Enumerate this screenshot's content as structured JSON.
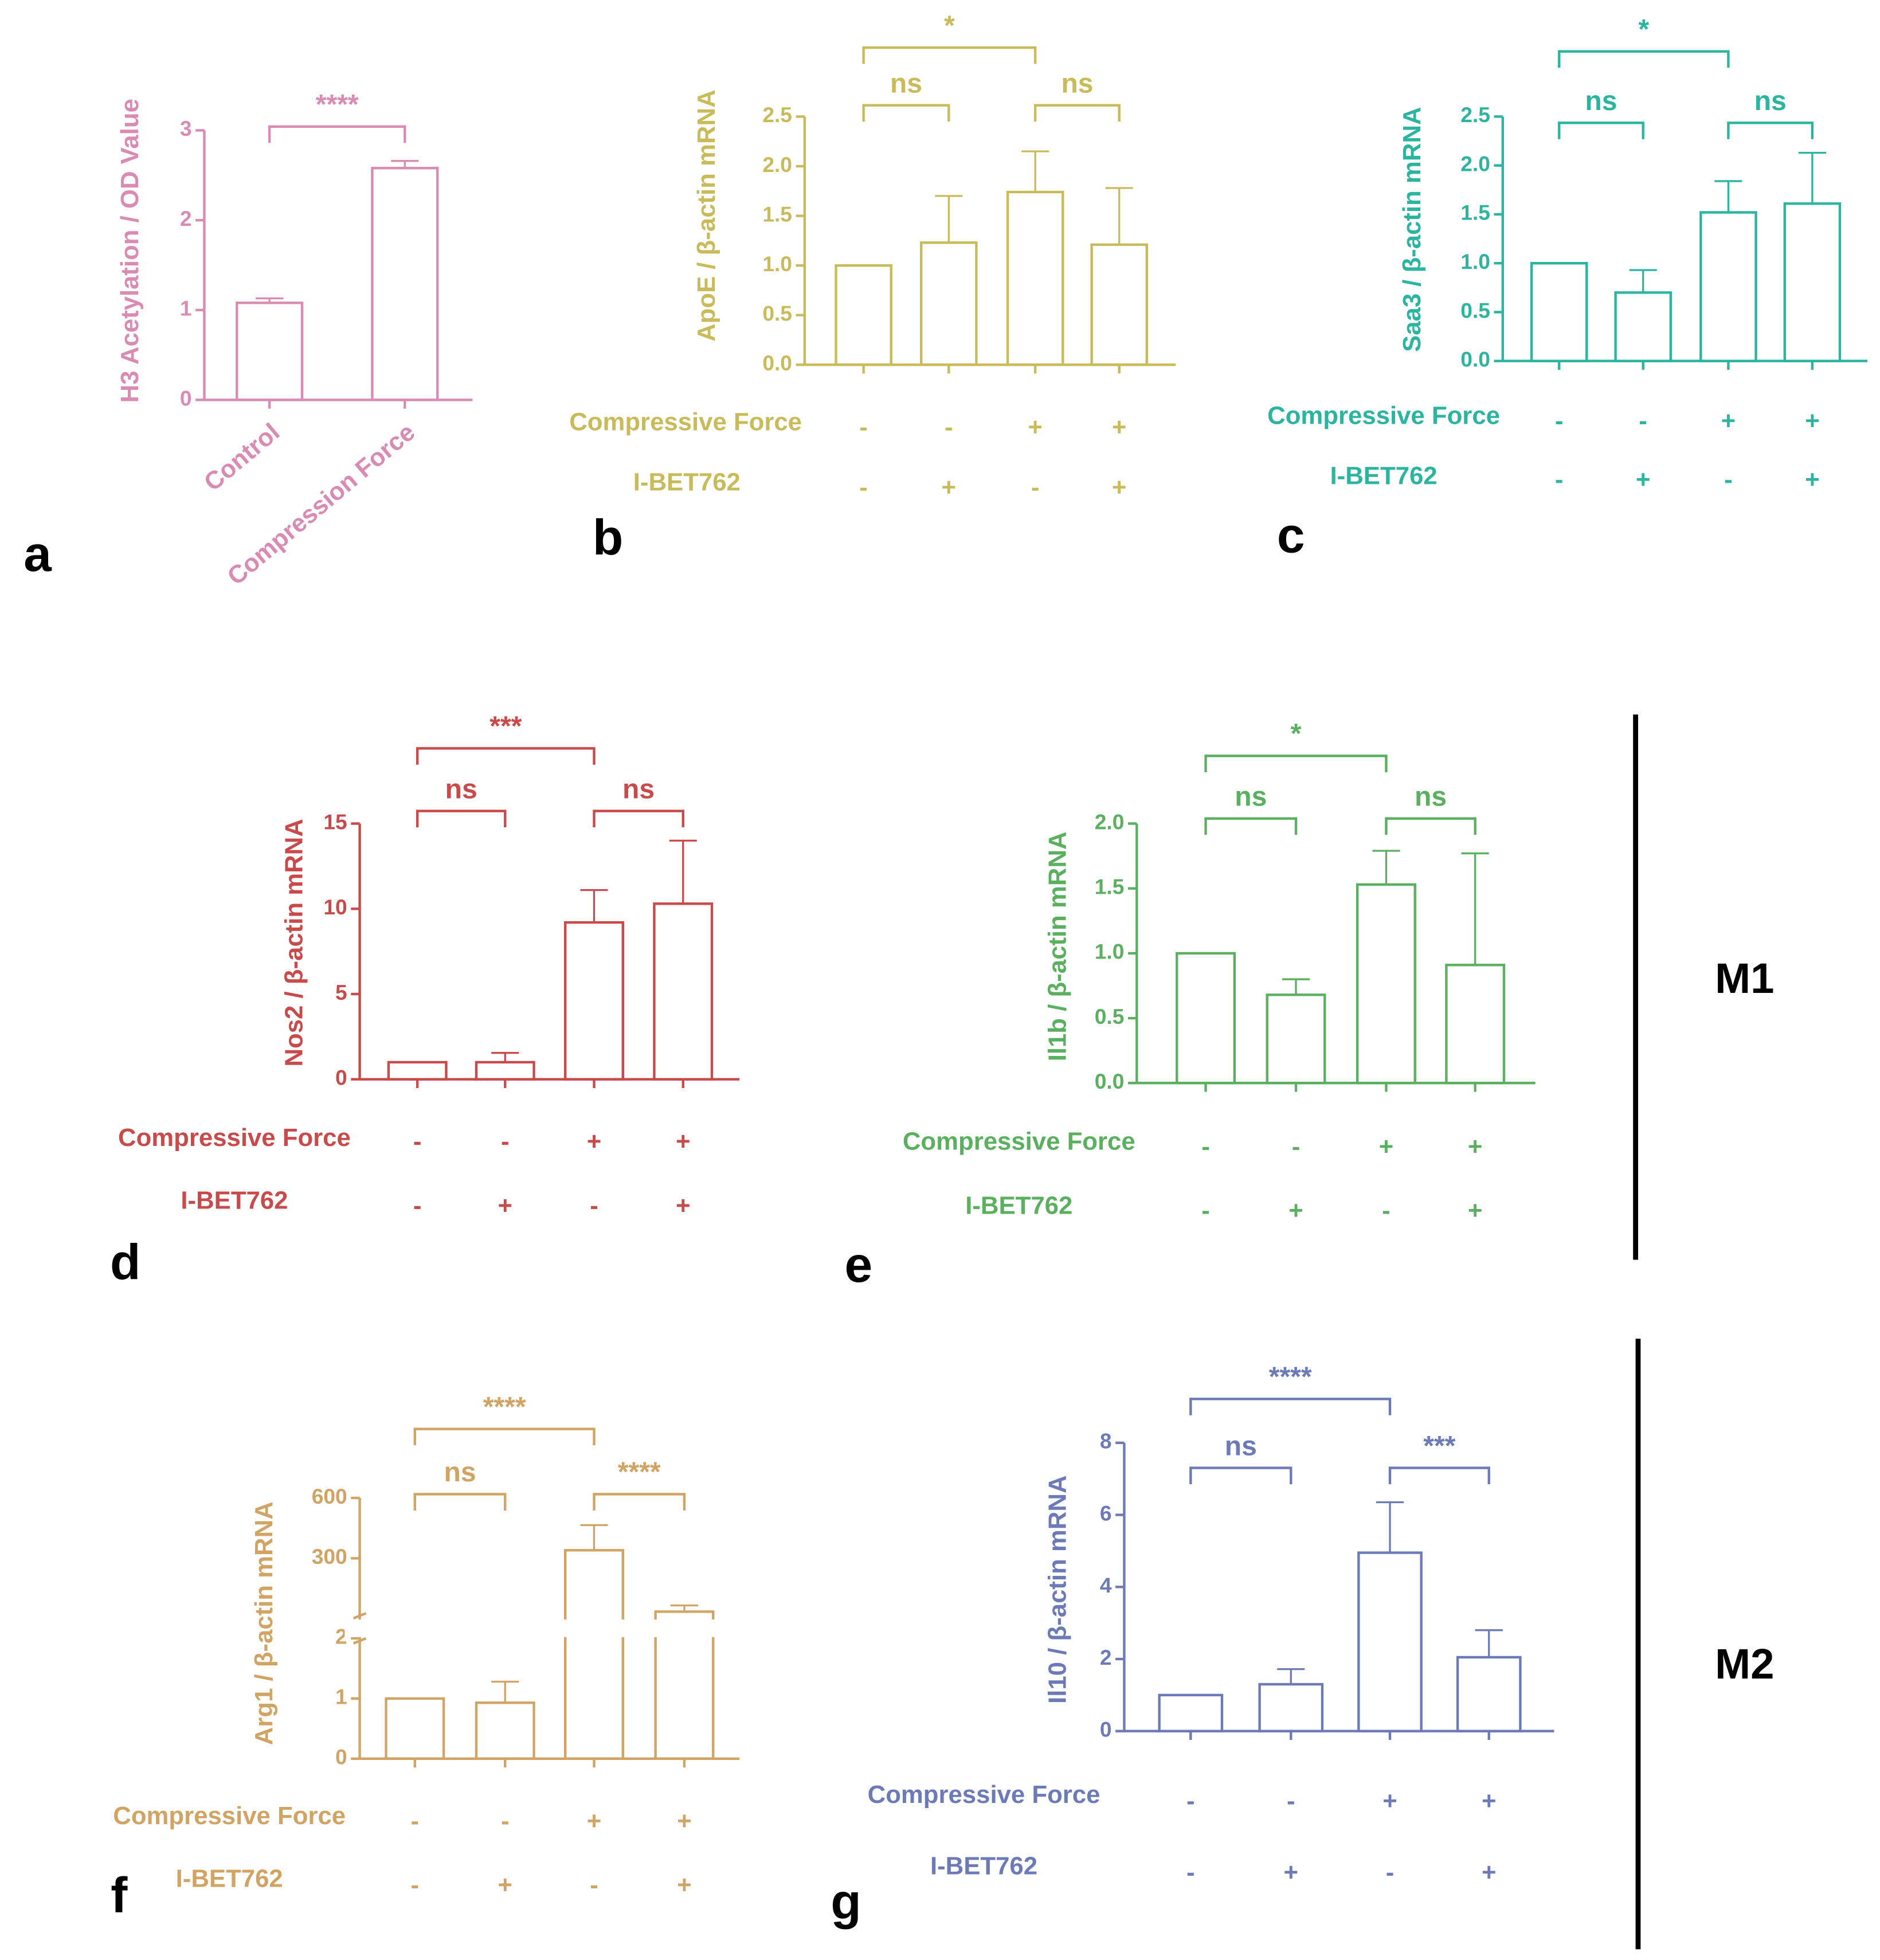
{
  "chart_data": [
    {
      "type": "bar",
      "panel": "a",
      "color": "#d98bb3",
      "ylabel": "H3 Acetylation / OD Value",
      "categories": [
        "Control",
        "Compression Force"
      ],
      "values": [
        1.08,
        2.58
      ],
      "errors": [
        0.05,
        0.08
      ],
      "ylim": [
        0,
        3
      ],
      "yticks": [
        0,
        1,
        2,
        3
      ],
      "comparisons": [
        {
          "groups": [
            0,
            1
          ],
          "label": "****"
        }
      ]
    },
    {
      "type": "bar",
      "panel": "b",
      "color": "#c9bb5a",
      "ylabel": "ApoE / β-actin mRNA",
      "rows": [
        {
          "name": "Compressive Force",
          "values": [
            "-",
            "-",
            "+",
            "+"
          ]
        },
        {
          "name": "I-BET762",
          "values": [
            "-",
            "+",
            "-",
            "+"
          ]
        }
      ],
      "values": [
        1.0,
        1.23,
        1.74,
        1.21
      ],
      "errors": [
        0,
        0.47,
        0.41,
        0.57
      ],
      "ylim": [
        0,
        2.5
      ],
      "yticks": [
        {
          "value": 0,
          "label": "0.0"
        },
        0.5,
        {
          "value": 1,
          "label": "1.0"
        },
        1.5,
        {
          "value": 2,
          "label": "2.0"
        },
        2.5
      ],
      "comparisons": [
        {
          "groups": [
            0,
            1
          ],
          "label": "ns"
        },
        {
          "groups": [
            2,
            3
          ],
          "label": "ns"
        },
        {
          "groups": [
            0,
            2
          ],
          "label": "*"
        }
      ]
    },
    {
      "type": "bar",
      "panel": "c",
      "color": "#2bb5a0",
      "ylabel": "Saa3 / β-actin mRNA",
      "rows": [
        {
          "name": "Compressive Force",
          "values": [
            "-",
            "-",
            "+",
            "+"
          ]
        },
        {
          "name": "I-BET762",
          "values": [
            "-",
            "+",
            "-",
            "+"
          ]
        }
      ],
      "values": [
        1.0,
        0.7,
        1.52,
        1.61
      ],
      "errors": [
        0,
        0.23,
        0.32,
        0.52
      ],
      "ylim": [
        0,
        2.5
      ],
      "yticks": [
        {
          "value": 0,
          "label": "0.0"
        },
        0.5,
        {
          "value": 1,
          "label": "1.0"
        },
        1.5,
        {
          "value": 2,
          "label": "2.0"
        },
        2.5
      ],
      "comparisons": [
        {
          "groups": [
            0,
            1
          ],
          "label": "ns"
        },
        {
          "groups": [
            2,
            3
          ],
          "label": "ns"
        },
        {
          "groups": [
            0,
            2
          ],
          "label": "*"
        }
      ]
    },
    {
      "type": "bar",
      "panel": "d",
      "color": "#c94a4a",
      "ylabel": "Nos2 / β-actin mRNA",
      "rows": [
        {
          "name": "Compressive Force",
          "values": [
            "-",
            "-",
            "+",
            "+"
          ]
        },
        {
          "name": "I-BET762",
          "values": [
            "-",
            "+",
            "-",
            "+"
          ]
        }
      ],
      "values": [
        1,
        1,
        9.2,
        10.3
      ],
      "errors": [
        0,
        0.55,
        1.9,
        3.7
      ],
      "ylim": [
        0,
        15
      ],
      "yticks": [
        0,
        5,
        10,
        15
      ],
      "comparisons": [
        {
          "groups": [
            0,
            1
          ],
          "label": "ns"
        },
        {
          "groups": [
            2,
            3
          ],
          "label": "ns"
        },
        {
          "groups": [
            0,
            2
          ],
          "label": "***"
        }
      ]
    },
    {
      "type": "bar",
      "panel": "e",
      "color": "#5bb060",
      "ylabel": "Il1b / β-actin mRNA",
      "rows": [
        {
          "name": "Compressive Force",
          "values": [
            "-",
            "-",
            "+",
            "+"
          ]
        },
        {
          "name": "I-BET762",
          "values": [
            "-",
            "+",
            "-",
            "+"
          ]
        }
      ],
      "values": [
        1.0,
        0.68,
        1.53,
        0.91
      ],
      "errors": [
        0,
        0.12,
        0.26,
        0.86
      ],
      "ylim": [
        0,
        2
      ],
      "yticks": [
        {
          "value": 0,
          "label": "0.0"
        },
        0.5,
        {
          "value": 1,
          "label": "1.0"
        },
        1.5,
        {
          "value": 2,
          "label": "2.0"
        }
      ],
      "comparisons": [
        {
          "groups": [
            0,
            1
          ],
          "label": "ns"
        },
        {
          "groups": [
            2,
            3
          ],
          "label": "ns"
        },
        {
          "groups": [
            0,
            2
          ],
          "label": "*"
        }
      ]
    },
    {
      "type": "bar",
      "panel": "f",
      "color": "#d1a464",
      "ylabel": "Arg1 / β-actin mRNA",
      "rows": [
        {
          "name": "Compressive Force",
          "values": [
            "-",
            "-",
            "+",
            "+"
          ]
        },
        {
          "name": "I-BET762",
          "values": [
            "-",
            "+",
            "-",
            "+"
          ]
        }
      ],
      "values": [
        1.0,
        0.93,
        340,
        35
      ],
      "errors": [
        0,
        0.35,
        125,
        31
      ],
      "ylim": [
        0,
        2
      ],
      "yticks": [
        0,
        1,
        2
      ],
      "ylim_upper": [
        2,
        600
      ],
      "yticks_upper": [
        300,
        600
      ],
      "axis_break": true,
      "comparisons": [
        {
          "groups": [
            0,
            1
          ],
          "label": "ns"
        },
        {
          "groups": [
            2,
            3
          ],
          "label": "****"
        },
        {
          "groups": [
            0,
            2
          ],
          "label": "****"
        }
      ]
    },
    {
      "type": "bar",
      "panel": "g",
      "color": "#6c7bb8",
      "ylabel": "Il10 / β-actin mRNA",
      "rows": [
        {
          "name": "Compressive Force",
          "values": [
            "-",
            "-",
            "+",
            "+"
          ]
        },
        {
          "name": "I-BET762",
          "values": [
            "-",
            "+",
            "-",
            "+"
          ]
        }
      ],
      "values": [
        1,
        1.3,
        4.95,
        2.05
      ],
      "errors": [
        0,
        0.42,
        1.4,
        0.75
      ],
      "ylim": [
        0,
        8
      ],
      "yticks": [
        0,
        2,
        4,
        6,
        8
      ],
      "comparisons": [
        {
          "groups": [
            0,
            1
          ],
          "label": "ns"
        },
        {
          "groups": [
            2,
            3
          ],
          "label": "***"
        },
        {
          "groups": [
            0,
            2
          ],
          "label": "****"
        }
      ]
    }
  ],
  "groups": [
    {
      "label": "M1"
    },
    {
      "label": "M2"
    }
  ]
}
